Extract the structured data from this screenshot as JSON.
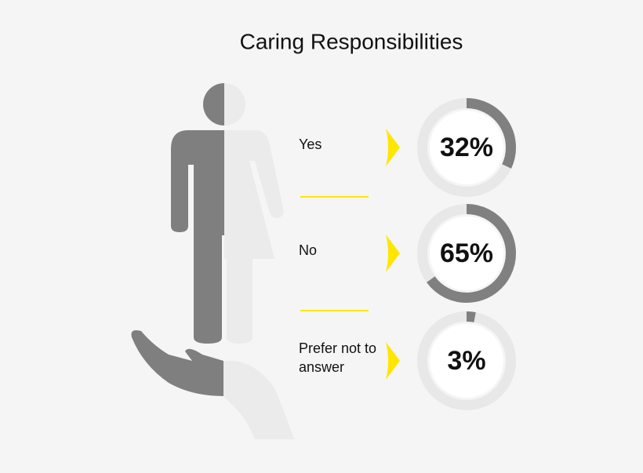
{
  "chart_data": {
    "type": "donut",
    "title": "Caring Responsibilities",
    "categories": [
      "Yes",
      "No",
      "Prefer not to answer"
    ],
    "values": [
      32,
      65,
      3
    ],
    "value_labels": [
      "32%",
      "65%",
      "3%"
    ],
    "color": "#808080",
    "track_color": "#e8e8e8",
    "accent_color": "#ffe600"
  }
}
